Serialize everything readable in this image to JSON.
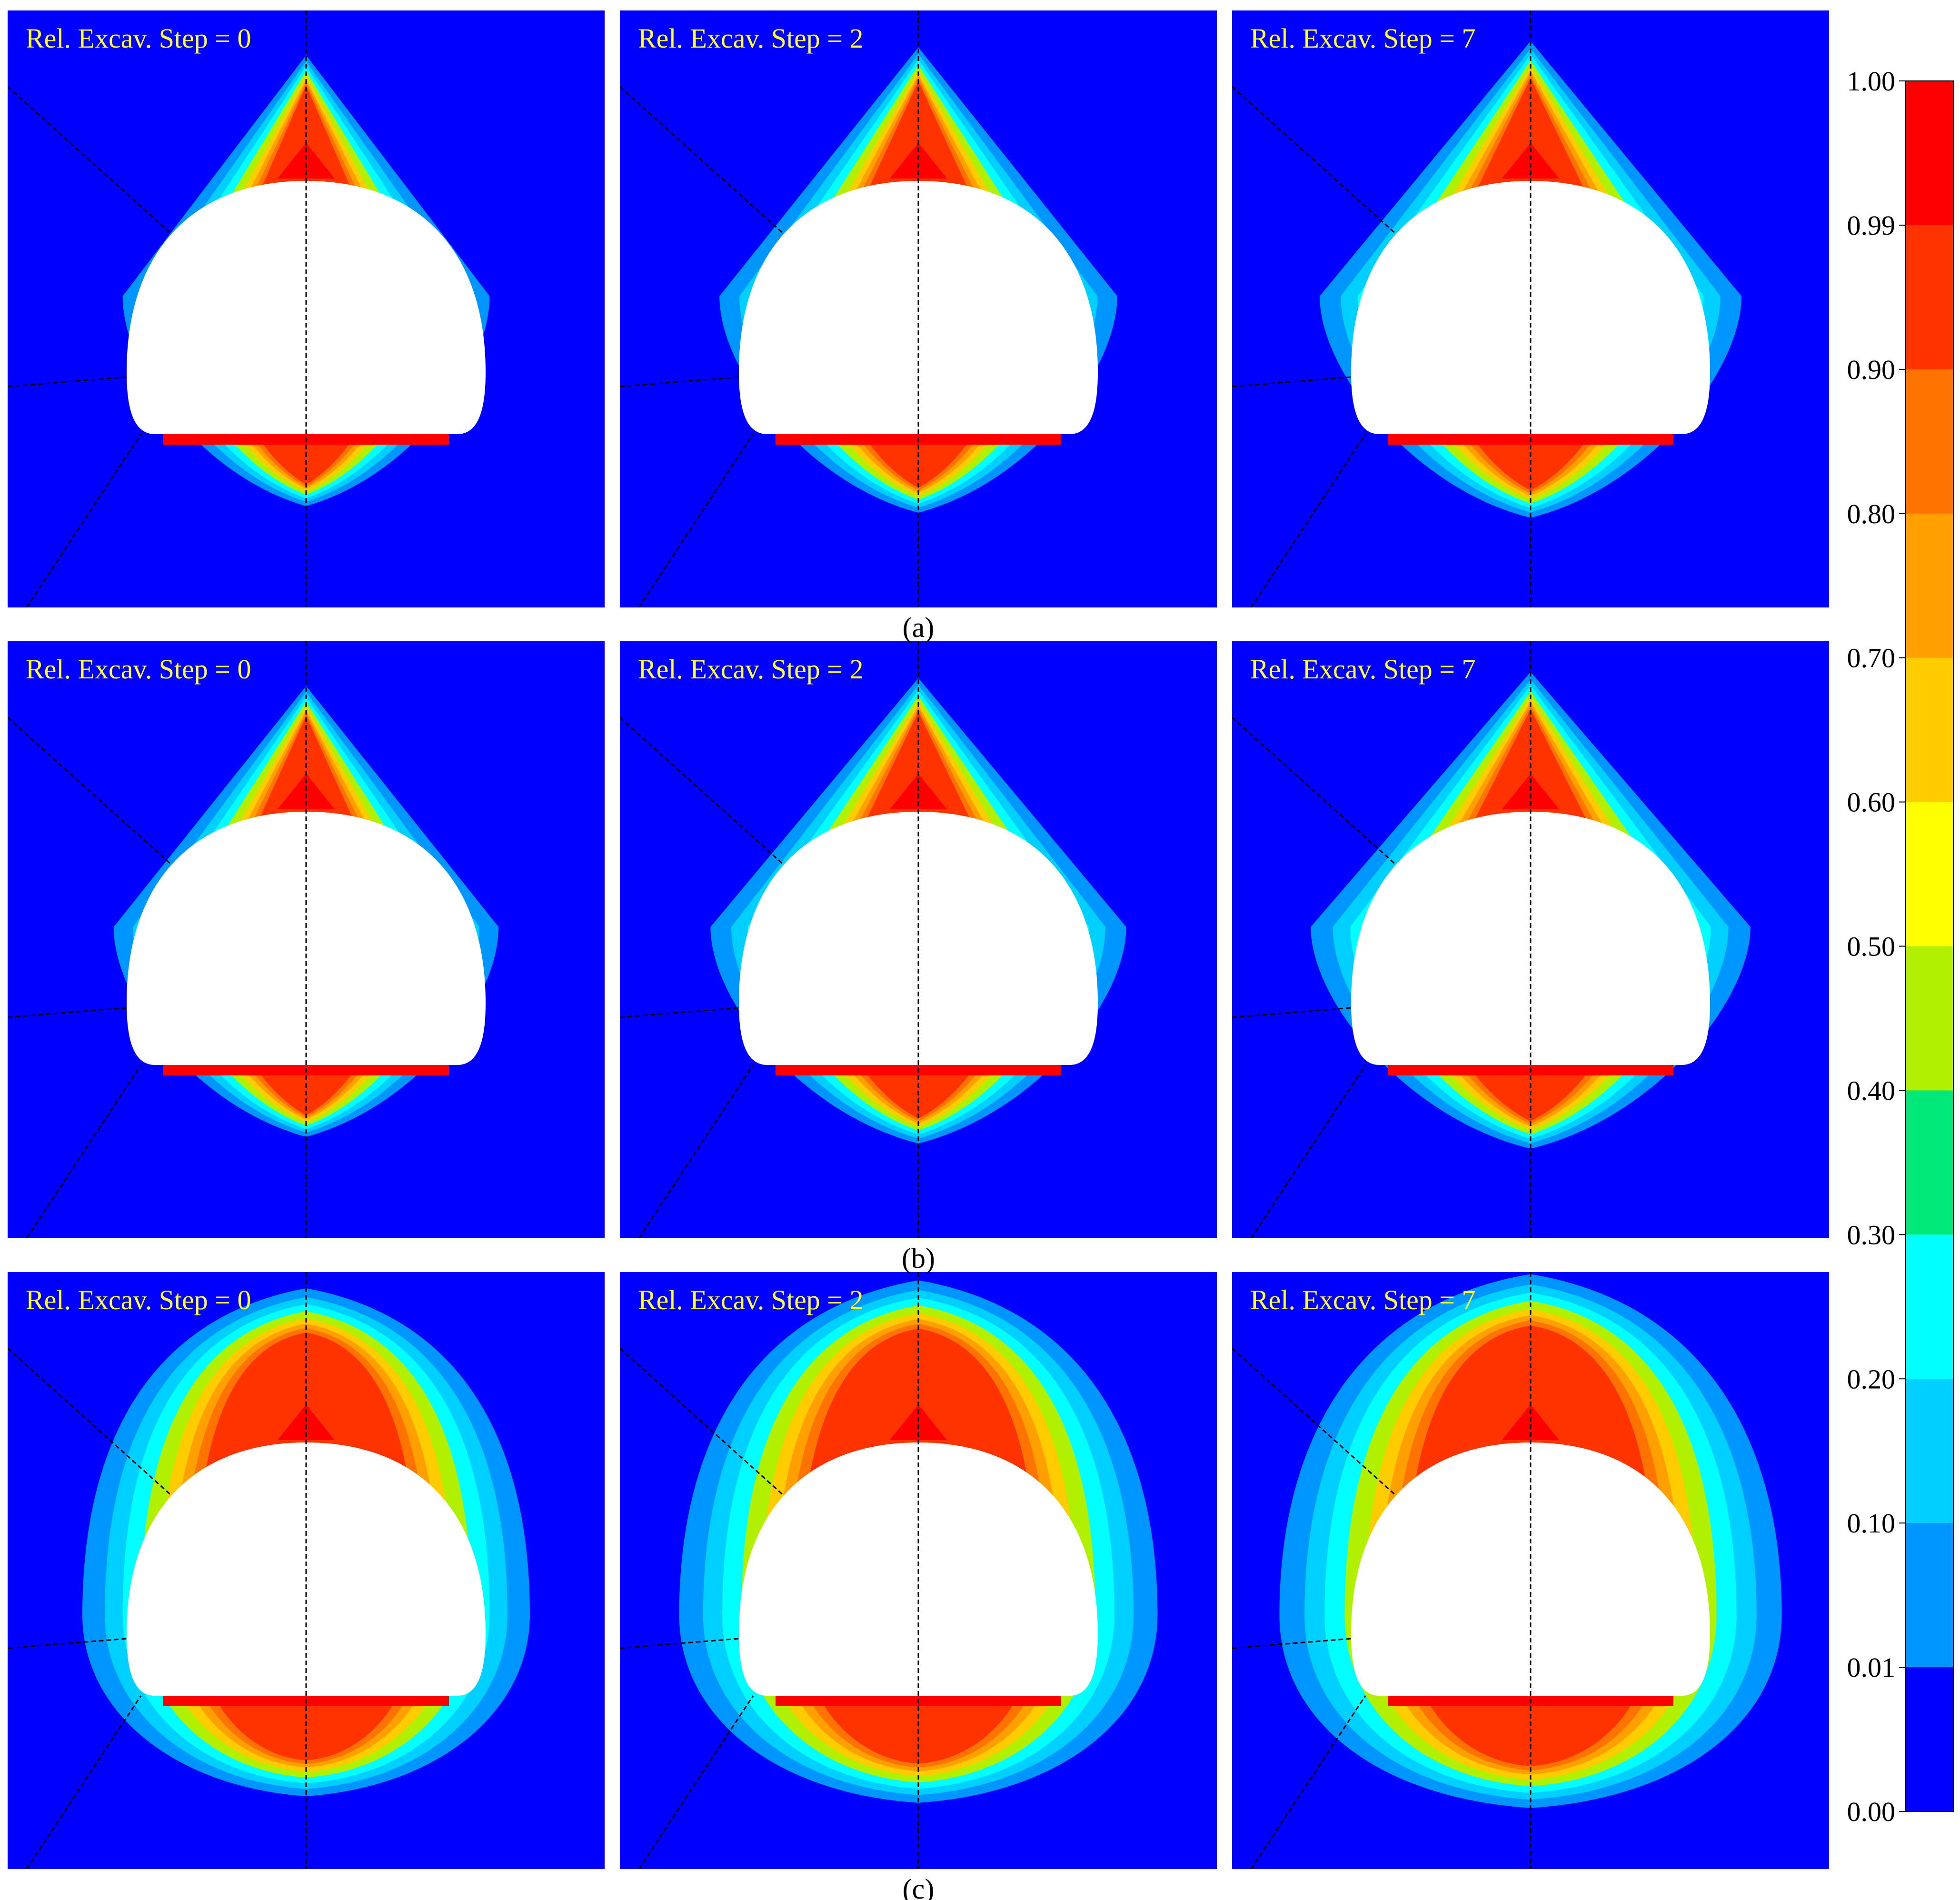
{
  "figure": {
    "rows": [
      {
        "label": "(a)",
        "panels": [
          {
            "title": "Rel. Excav. Step = 0",
            "step": 0
          },
          {
            "title": "Rel. Excav. Step = 2",
            "step": 2
          },
          {
            "title": "Rel. Excav. Step = 7",
            "step": 7
          }
        ]
      },
      {
        "label": "(b)",
        "panels": [
          {
            "title": "Rel. Excav. Step = 0",
            "step": 0
          },
          {
            "title": "Rel. Excav. Step = 2",
            "step": 2
          },
          {
            "title": "Rel. Excav. Step = 7",
            "step": 7
          }
        ]
      },
      {
        "label": "(c)",
        "panels": [
          {
            "title": "Rel. Excav. Step = 0",
            "step": 0
          },
          {
            "title": "Rel. Excav. Step = 2",
            "step": 2
          },
          {
            "title": "Rel. Excav. Step = 7",
            "step": 7
          }
        ]
      }
    ]
  },
  "chart_data": {
    "type": "heatmap",
    "background_color": "#0000ff",
    "panel_title_color": "#ffff33",
    "colorbar": {
      "tick_labels": [
        "1.00",
        "0.99",
        "0.90",
        "0.80",
        "0.70",
        "0.60",
        "0.50",
        "0.40",
        "0.30",
        "0.20",
        "0.10",
        "0.01",
        "0.00"
      ],
      "bins": [
        {
          "from": 0.99,
          "to": 1.0,
          "color": "#ff0000"
        },
        {
          "from": 0.9,
          "to": 0.99,
          "color": "#ff3300"
        },
        {
          "from": 0.8,
          "to": 0.9,
          "color": "#ff7300"
        },
        {
          "from": 0.7,
          "to": 0.8,
          "color": "#ffa000"
        },
        {
          "from": 0.6,
          "to": 0.7,
          "color": "#ffcc00"
        },
        {
          "from": 0.5,
          "to": 0.6,
          "color": "#ffff00"
        },
        {
          "from": 0.4,
          "to": 0.5,
          "color": "#b0f000"
        },
        {
          "from": 0.3,
          "to": 0.4,
          "color": "#00e878"
        },
        {
          "from": 0.2,
          "to": 0.3,
          "color": "#00ffff"
        },
        {
          "from": 0.1,
          "to": 0.2,
          "color": "#00d0ff"
        },
        {
          "from": 0.01,
          "to": 0.1,
          "color": "#0096ff"
        },
        {
          "from": 0.0,
          "to": 0.01,
          "color": "#0000ff"
        }
      ]
    }
  }
}
